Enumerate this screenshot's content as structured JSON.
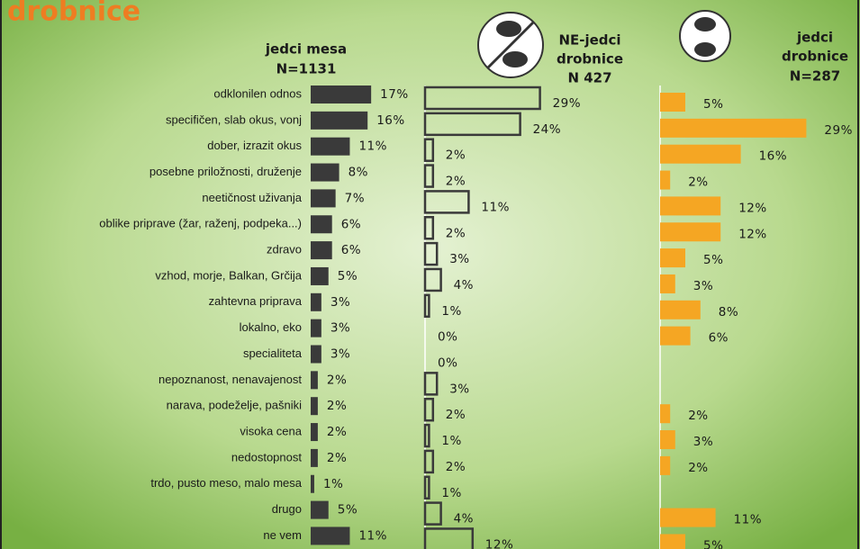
{
  "chart_data": {
    "type": "bar",
    "orientation": "horizontal",
    "title": "drobnice",
    "categories": [
      "odklonilen odnos",
      "specifičen, slab okus, vonj",
      "dober, izrazit okus",
      "posebne priložnosti, druženje",
      "neetičnost uživanja",
      "oblike priprave (žar, raženj, podpeka...)",
      "zdravo",
      "vzhod, morje, Balkan, Grčija",
      "zahtevna priprava",
      "lokalno, eko",
      "specialiteta",
      "nepoznanost, nenavajenost",
      "narava, podeželje, pašniki",
      "visoka cena",
      "nedostopnost",
      "trdo, pusto meso, malo mesa",
      "drugo",
      "ne vem"
    ],
    "series": [
      {
        "name": [
          "jedci mesa",
          "N=1131"
        ],
        "color": "#3a3a3a",
        "style": "filled",
        "values": [
          17,
          16,
          11,
          8,
          7,
          6,
          6,
          5,
          3,
          3,
          3,
          2,
          2,
          2,
          2,
          1,
          5,
          11
        ],
        "value_labels": [
          "17%",
          "16%",
          "11%",
          "8%",
          "7%",
          "6%",
          "6%",
          "5%",
          "3%",
          "3%",
          "3%",
          "2%",
          "2%",
          "2%",
          "2%",
          "1%",
          "5%",
          "11%"
        ]
      },
      {
        "name": [
          "NE-jedci",
          "drobnice",
          "N 427"
        ],
        "color": "#3a3a3a",
        "style": "outline",
        "values": [
          29,
          24,
          2,
          2,
          11,
          2,
          3,
          4,
          1,
          0,
          0,
          3,
          2,
          1,
          2,
          1,
          4,
          12
        ],
        "value_labels": [
          "29%",
          "24%",
          "2%",
          "2%",
          "11%",
          "2%",
          "3%",
          "4%",
          "1%",
          "0%",
          "0%",
          "3%",
          "2%",
          "1%",
          "2%",
          "1%",
          "4%",
          "12%"
        ]
      },
      {
        "name": [
          "jedci",
          "drobnice",
          "N=287"
        ],
        "color": "#f5a623",
        "style": "filled",
        "values": [
          5,
          29,
          16,
          2,
          12,
          12,
          5,
          3,
          8,
          6,
          null,
          null,
          2,
          3,
          2,
          null,
          11,
          5
        ],
        "value_labels": [
          "5%",
          "29%",
          "16%",
          "2%",
          "12%",
          "12%",
          "5%",
          "3%",
          "8%",
          "6%",
          null,
          null,
          "2%",
          "3%",
          "2%",
          null,
          "11%",
          "5%"
        ]
      }
    ]
  }
}
